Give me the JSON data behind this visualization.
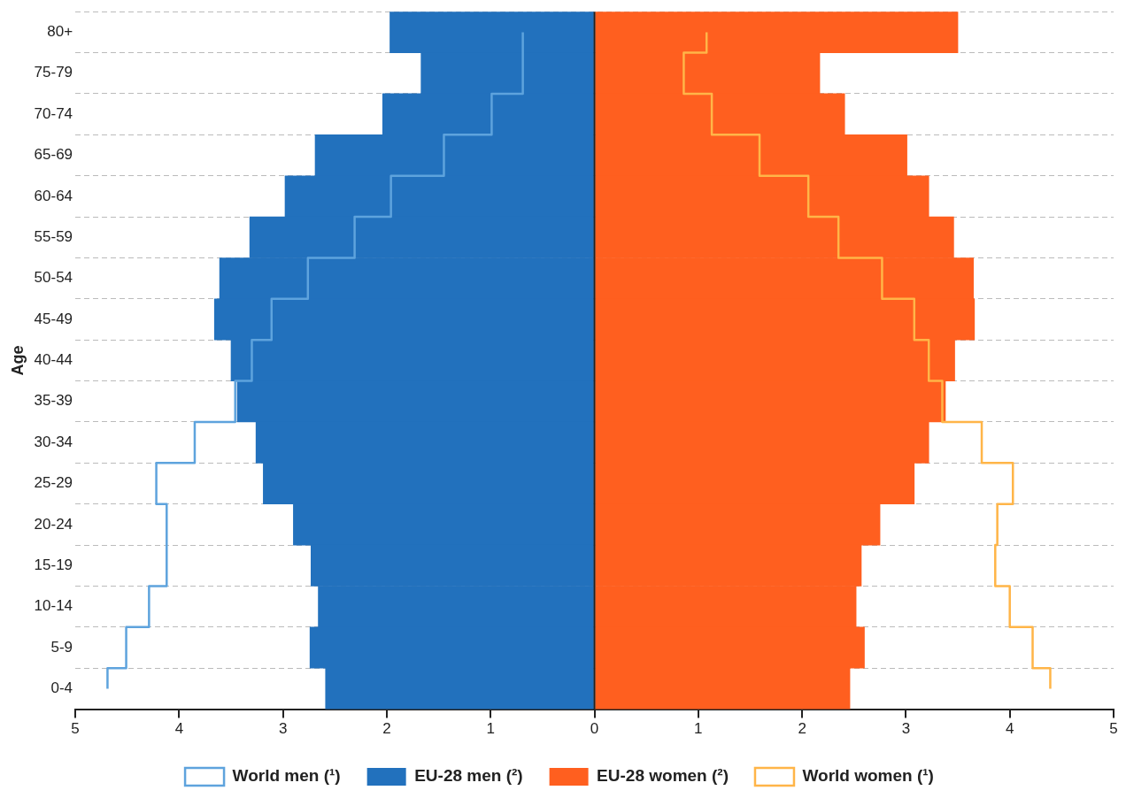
{
  "chart_data": {
    "type": "bar",
    "orientation": "horizontal",
    "ylabel": "Age",
    "categories": [
      "80+",
      "75-79",
      "70-74",
      "65-69",
      "60-64",
      "55-59",
      "50-54",
      "45-49",
      "40-44",
      "35-39",
      "30-34",
      "25-29",
      "20-24",
      "15-19",
      "10-14",
      "5-9",
      "0-4"
    ],
    "series": [
      {
        "name": "World men (¹)",
        "color": "#5ea3dd",
        "type": "step",
        "values": [
          -0.69,
          -0.69,
          -0.99,
          -1.45,
          -1.96,
          -2.31,
          -2.76,
          -3.11,
          -3.3,
          -3.46,
          -3.85,
          -4.22,
          -4.12,
          -4.12,
          -4.29,
          -4.51,
          -4.69
        ]
      },
      {
        "name": "EU-28 men (²)",
        "color": "#2271bd",
        "values": [
          -1.97,
          -1.67,
          -2.04,
          -2.69,
          -2.98,
          -3.32,
          -3.61,
          -3.66,
          -3.5,
          -3.44,
          -3.26,
          -3.19,
          -2.9,
          -2.73,
          -2.66,
          -2.74,
          -2.59
        ]
      },
      {
        "name": "EU-28 women (²)",
        "color": "#ff5f1f",
        "values": [
          3.5,
          2.17,
          2.41,
          3.01,
          3.22,
          3.46,
          3.65,
          3.66,
          3.47,
          3.38,
          3.22,
          3.08,
          2.75,
          2.57,
          2.52,
          2.6,
          2.46
        ]
      },
      {
        "name": "World women (¹)",
        "color": "#ffb548",
        "type": "step",
        "values": [
          1.08,
          0.86,
          1.13,
          1.59,
          2.06,
          2.35,
          2.77,
          3.08,
          3.22,
          3.35,
          3.73,
          4.03,
          3.88,
          3.86,
          4.0,
          4.22,
          4.39
        ]
      }
    ],
    "xlim": [
      -5,
      5
    ],
    "xticks": [
      {
        "value": -5,
        "label": "5"
      },
      {
        "value": -4,
        "label": "4"
      },
      {
        "value": -3,
        "label": "3"
      },
      {
        "value": -2,
        "label": "2"
      },
      {
        "value": -1,
        "label": "1"
      },
      0,
      1,
      2,
      3,
      4,
      5
    ],
    "ref_lines": [
      {
        "axis": "x",
        "value": 0,
        "color": "#222222"
      }
    ],
    "stacked": true,
    "grid": "y",
    "legend": "bottom"
  }
}
